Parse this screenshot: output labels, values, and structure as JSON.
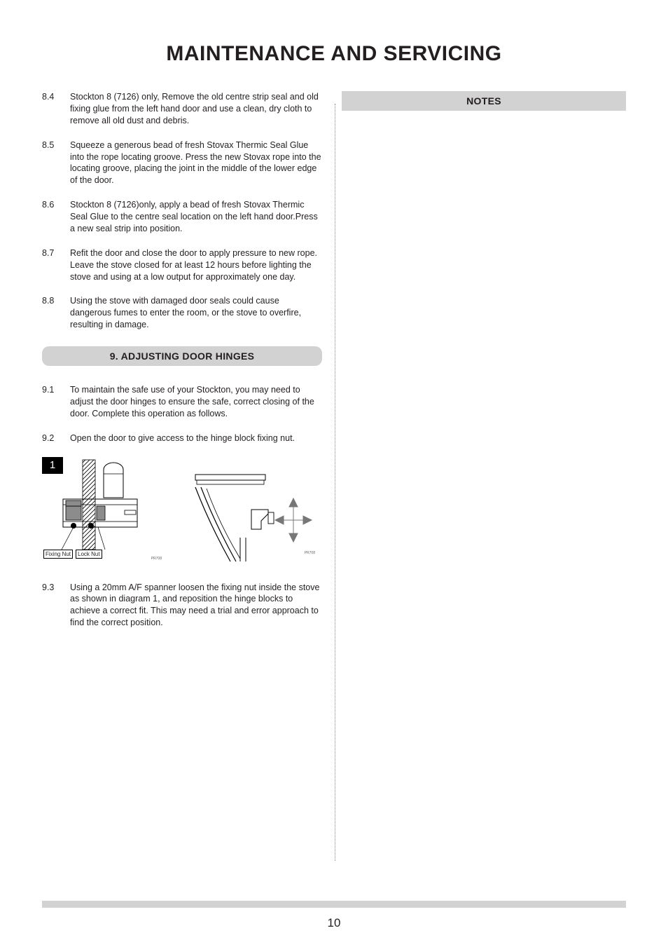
{
  "page": {
    "title": "MAINTENANCE AND SERVICING",
    "title_fontsize": 30,
    "number": "10",
    "number_fontsize": 17
  },
  "colors": {
    "text": "#231f20",
    "section_bg": "#d3d2d2",
    "footer_bar": "#d3d2d2",
    "divider": "#8a8a8a",
    "badge_bg": "#000000",
    "badge_fg": "#ffffff"
  },
  "body_fontsize": 12.5,
  "left": {
    "paragraphs_a": [
      {
        "num": "8.4",
        "text": "Stockton 8 (7126) only, Remove the old centre strip seal and old fixing glue from the left hand door and use a clean, dry cloth to remove all old dust and debris."
      },
      {
        "num": "8.5",
        "text": "Squeeze a generous bead of fresh Stovax Thermic Seal Glue into the rope locating groove. Press the new Stovax rope into the locating groove, placing the joint in the middle of the lower edge of the door."
      },
      {
        "num": "8.6",
        "text": "Stockton 8 (7126)only, apply a bead of fresh Stovax Thermic Seal Glue to the centre seal location on the left hand door.Press a new seal strip into position."
      },
      {
        "num": "8.7",
        "text": "Refit the door and close the door to apply pressure to new rope. Leave the stove closed for at least 12 hours before lighting the stove and using at a low output for approximately one day."
      },
      {
        "num": "8.8",
        "text": "Using the stove with damaged door seals could cause dangerous fumes to enter the room, or the stove to overfire, resulting in damage."
      }
    ],
    "section9": {
      "heading": "9. ADJUSTING DOOR HINGES",
      "heading_fontsize": 14,
      "paragraphs_b": [
        {
          "num": "9.1",
          "text": "To maintain the safe use of your Stockton, you may need to adjust the door hinges to ensure the safe, correct closing of the door. Complete this operation as follows."
        },
        {
          "num": "9.2",
          "text": "Open the door to give access to the hinge block fixing nut."
        }
      ],
      "diagram": {
        "badge": "1",
        "label_fixing": "Fixing Nut",
        "label_lock": "Lock Nut",
        "ref1": "PR708",
        "ref2": "PR708"
      },
      "paragraphs_c": [
        {
          "num": "9.3",
          "text": "Using a 20mm A/F spanner loosen the fixing nut inside the stove as shown in diagram 1, and reposition the hinge blocks to achieve a correct fit. This may need a trial and error approach to find the correct position."
        }
      ]
    }
  },
  "right": {
    "notes_heading": "NOTES",
    "notes_fontsize": 14
  }
}
